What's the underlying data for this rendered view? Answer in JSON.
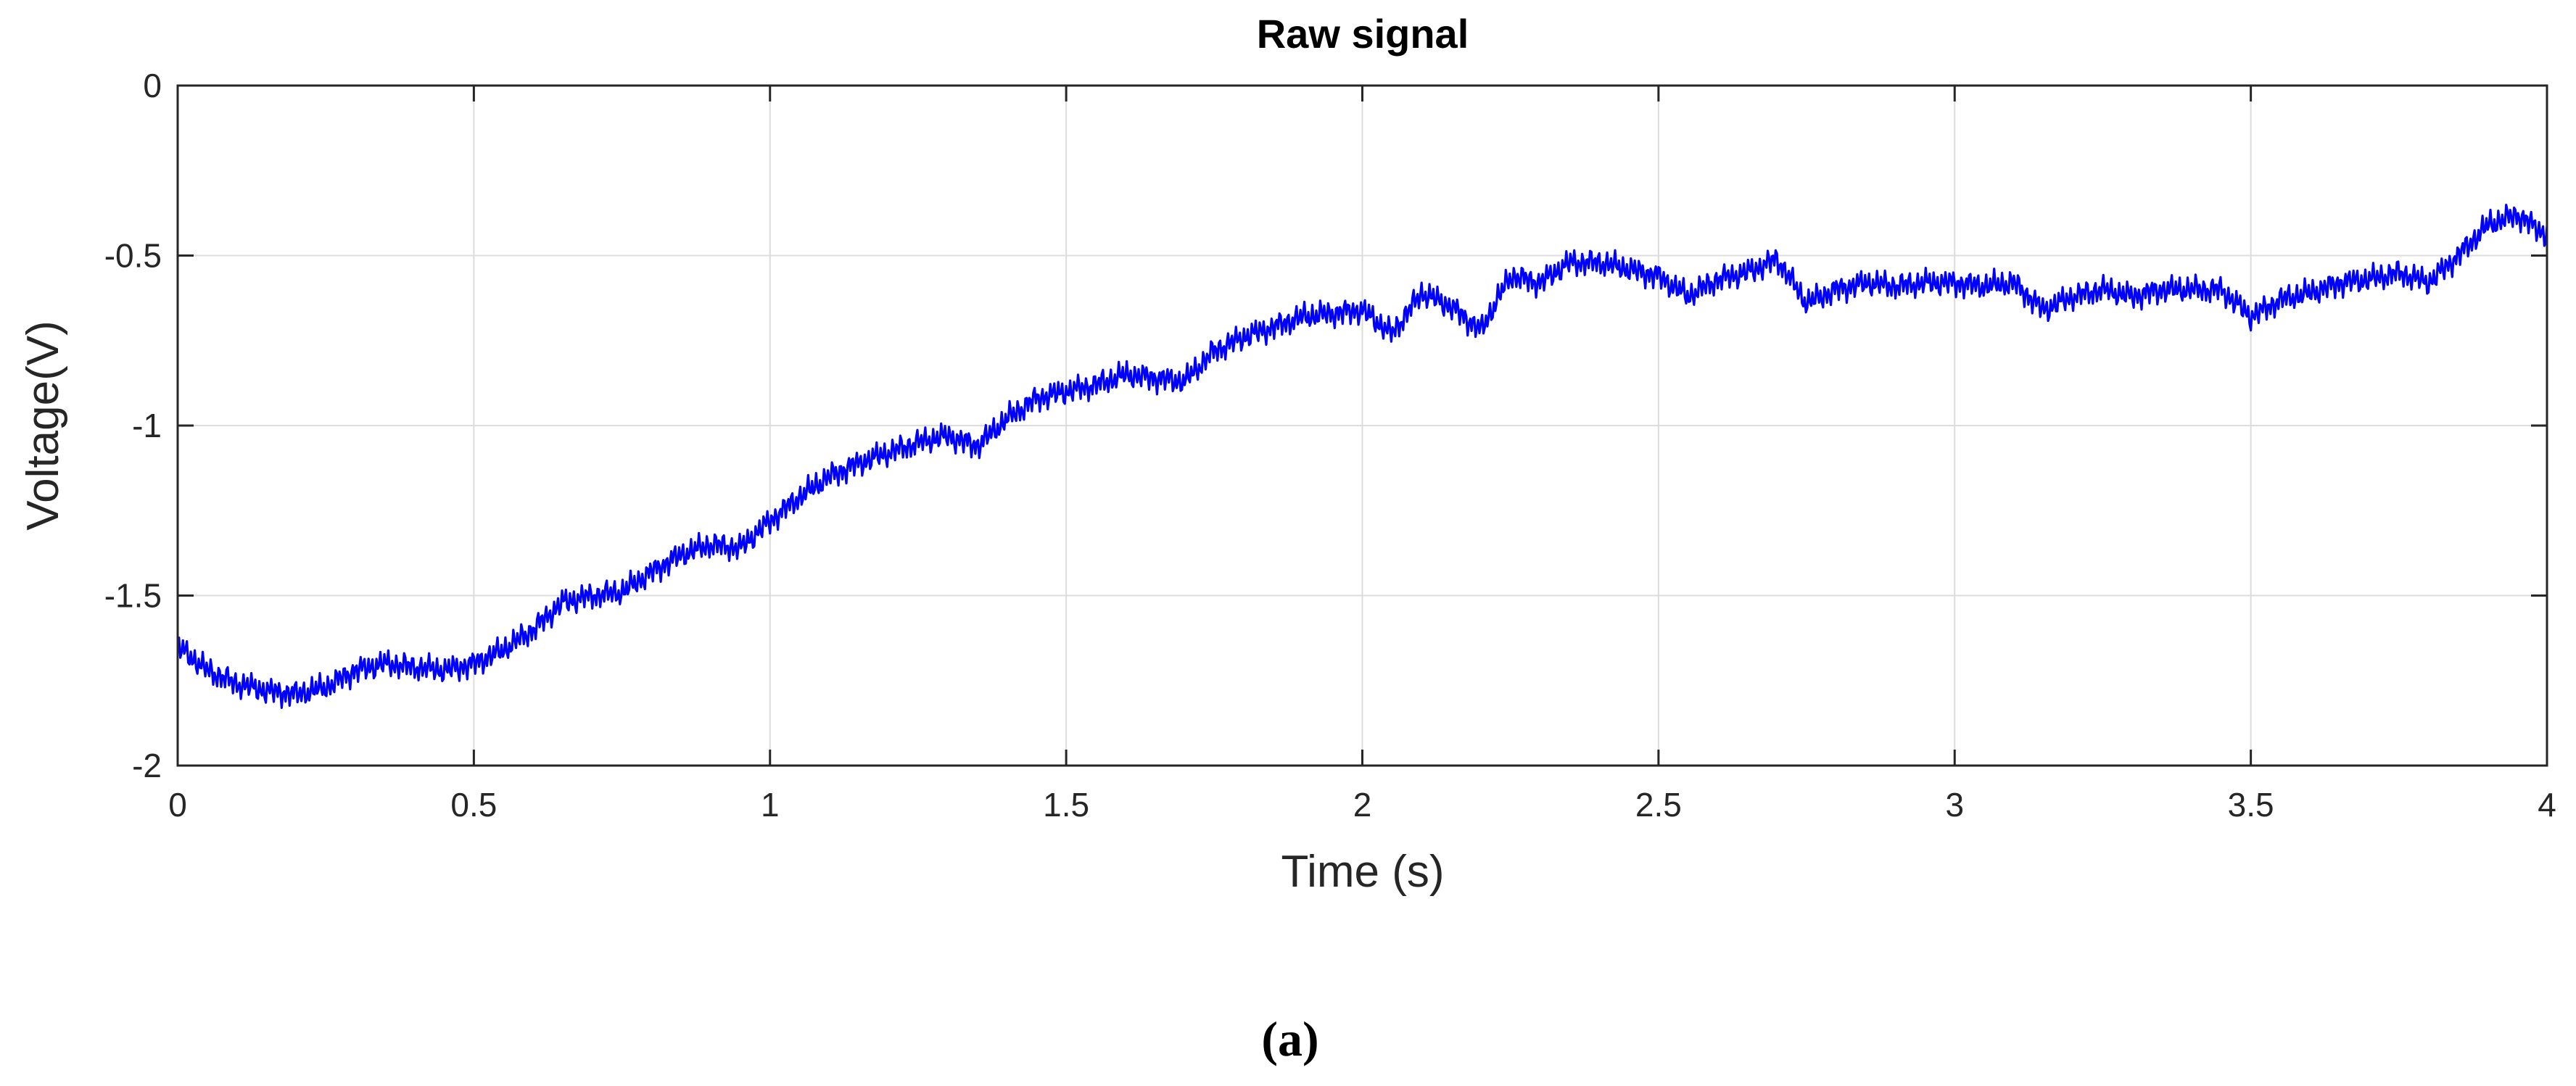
{
  "chart_data": {
    "type": "line",
    "title": "Raw signal",
    "xlabel": "Time (s)",
    "ylabel": "Voltage(V)",
    "xlim": [
      0,
      4
    ],
    "ylim": [
      -2,
      0
    ],
    "grid": true,
    "x_ticks": [
      0,
      0.5,
      1,
      1.5,
      2,
      2.5,
      3,
      3.5,
      4
    ],
    "x_tick_labels": [
      "0",
      "0.5",
      "1",
      "1.5",
      "2",
      "2.5",
      "3",
      "3.5",
      "4"
    ],
    "y_ticks": [
      0,
      -0.5,
      -1,
      -1.5,
      -2
    ],
    "y_tick_labels": [
      "0",
      "-0.5",
      "-1",
      "-1.5",
      "-2"
    ],
    "series": [
      {
        "color": "#0000ff",
        "x": [
          0,
          0.05,
          0.1,
          0.15,
          0.2,
          0.25,
          0.3,
          0.35,
          0.4,
          0.45,
          0.5,
          0.55,
          0.6,
          0.65,
          0.7,
          0.75,
          0.8,
          0.85,
          0.9,
          0.95,
          1.0,
          1.05,
          1.1,
          1.15,
          1.2,
          1.25,
          1.3,
          1.35,
          1.4,
          1.45,
          1.5,
          1.55,
          1.6,
          1.65,
          1.7,
          1.75,
          1.8,
          1.85,
          1.9,
          1.95,
          2.0,
          2.05,
          2.1,
          2.15,
          2.2,
          2.25,
          2.3,
          2.35,
          2.4,
          2.45,
          2.5,
          2.55,
          2.6,
          2.65,
          2.7,
          2.75,
          2.8,
          2.85,
          2.9,
          2.95,
          3.0,
          3.05,
          3.1,
          3.15,
          3.2,
          3.25,
          3.3,
          3.35,
          3.4,
          3.45,
          3.5,
          3.55,
          3.6,
          3.65,
          3.7,
          3.75,
          3.8,
          3.85,
          3.9,
          3.95,
          4.0
        ],
        "y": [
          -1.65,
          -1.72,
          -1.76,
          -1.78,
          -1.79,
          -1.77,
          -1.72,
          -1.7,
          -1.71,
          -1.72,
          -1.7,
          -1.66,
          -1.6,
          -1.52,
          -1.5,
          -1.49,
          -1.43,
          -1.38,
          -1.35,
          -1.36,
          -1.28,
          -1.21,
          -1.15,
          -1.11,
          -1.08,
          -1.05,
          -1.03,
          -1.06,
          -0.98,
          -0.92,
          -0.9,
          -0.88,
          -0.85,
          -0.86,
          -0.87,
          -0.78,
          -0.74,
          -0.71,
          -0.68,
          -0.67,
          -0.66,
          -0.73,
          -0.61,
          -0.65,
          -0.72,
          -0.56,
          -0.58,
          -0.52,
          -0.52,
          -0.54,
          -0.56,
          -0.62,
          -0.57,
          -0.55,
          -0.51,
          -0.64,
          -0.6,
          -0.58,
          -0.59,
          -0.58,
          -0.58,
          -0.59,
          -0.58,
          -0.66,
          -0.62,
          -0.6,
          -0.62,
          -0.6,
          -0.6,
          -0.6,
          -0.68,
          -0.63,
          -0.61,
          -0.58,
          -0.57,
          -0.55,
          -0.58,
          -0.5,
          -0.41,
          -0.38,
          -0.44
        ]
      }
    ]
  },
  "caption": "(a)"
}
